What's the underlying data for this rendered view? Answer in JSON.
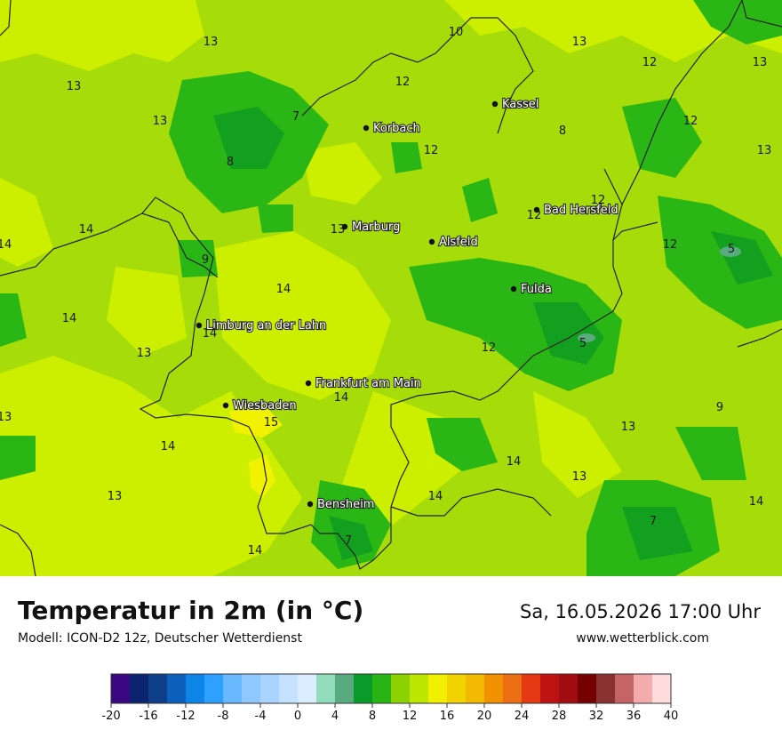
{
  "header": {
    "title": "Temperatur in 2m (in °C)",
    "model": "Modell: ICON-D2 12z, Deutscher Wetterdienst",
    "datetime": "Sa, 16.05.2026 17:00 Uhr",
    "website": "www.wetterblick.com"
  },
  "map": {
    "cities": [
      {
        "name": "Kassel"
      },
      {
        "name": "Korbach"
      },
      {
        "name": "Bad Hersfeld"
      },
      {
        "name": "Marburg"
      },
      {
        "name": "Alsfeld"
      },
      {
        "name": "Fulda"
      },
      {
        "name": "Limburg an der Lahn"
      },
      {
        "name": "Frankfurt am Main"
      },
      {
        "name": "Wiesbaden"
      },
      {
        "name": "Bensheim"
      }
    ],
    "temperature_labels": [
      "13",
      "13",
      "10",
      "13",
      "12",
      "13",
      "12",
      "13",
      "7",
      "12",
      "13",
      "12",
      "8",
      "8",
      "12",
      "13",
      "14",
      "12",
      "12",
      "14",
      "14",
      "9",
      "5",
      "14",
      "14",
      "12",
      "13",
      "5",
      "14",
      "15",
      "13",
      "9",
      "13",
      "14",
      "14",
      "13",
      "14",
      "13",
      "14",
      "7",
      "7",
      "14"
    ]
  },
  "legend": {
    "colors": [
      "#3a0880",
      "#0c2470",
      "#0c3f87",
      "#0c5fba",
      "#0c85e6",
      "#2ea0ff",
      "#6ab8ff",
      "#8ec8ff",
      "#a8d4ff",
      "#c4e1ff",
      "#dcecff",
      "#90dcbc",
      "#5aaa80",
      "#0a9a2a",
      "#28b414",
      "#8cd200",
      "#bee600",
      "#f0f000",
      "#f2d200",
      "#f2b900",
      "#f29200",
      "#eb6e12",
      "#e43812",
      "#be1212",
      "#a00c12",
      "#740000",
      "#8a3232",
      "#c46464",
      "#f2acac",
      "#ffdcdc"
    ],
    "ticks": [
      "-20",
      "-16",
      "-12",
      "-8",
      "-4",
      "0",
      "4",
      "8",
      "12",
      "16",
      "20",
      "24",
      "28",
      "32",
      "36",
      "40"
    ]
  },
  "chart_data": {
    "type": "heatmap",
    "title": "Temperatur in 2m (in °C)",
    "colorbar_range": [
      -20,
      40
    ],
    "colorbar_step": 2,
    "city_temperatures_visible": [
      {
        "city": "Kassel",
        "value": 13
      },
      {
        "city": "Marburg",
        "value": 13
      },
      {
        "city": "Bad Hersfeld",
        "value": 12
      },
      {
        "city": "Limburg an der Lahn",
        "value": 14
      }
    ]
  }
}
